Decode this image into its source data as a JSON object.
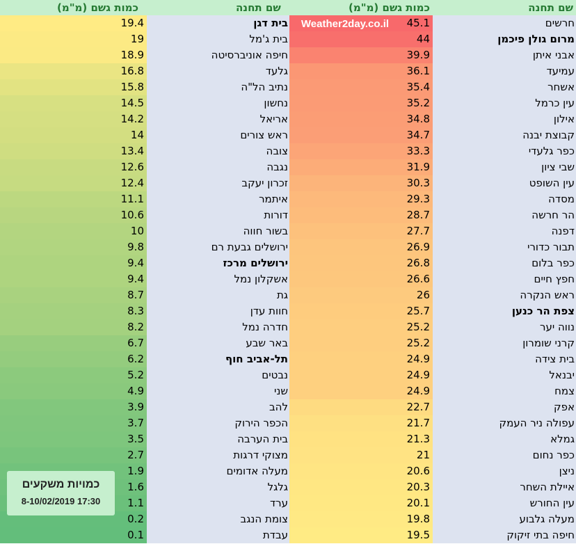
{
  "headers": {
    "station": "שם תחנה",
    "rain": "כמות גשם (מ\"מ)"
  },
  "watermark": "Weather2day.co.il",
  "info": {
    "title": "כמויות משקעים",
    "date": "8-10/02/2019 17:30"
  },
  "right_table": [
    {
      "name": "חרשים",
      "value": "45.1",
      "bold": false
    },
    {
      "name": "מרום גולן פיכמן",
      "value": "44",
      "bold": true
    },
    {
      "name": "אבני איתן",
      "value": "39.9",
      "bold": false
    },
    {
      "name": "עמיעד",
      "value": "36.1",
      "bold": false
    },
    {
      "name": "אשחר",
      "value": "35.4",
      "bold": false
    },
    {
      "name": "עין כרמל",
      "value": "35.2",
      "bold": false
    },
    {
      "name": "אילון",
      "value": "34.8",
      "bold": false
    },
    {
      "name": "קבוצת יבנה",
      "value": "34.7",
      "bold": false
    },
    {
      "name": "כפר גלעדי",
      "value": "33.3",
      "bold": false
    },
    {
      "name": "שבי ציון",
      "value": "31.9",
      "bold": false
    },
    {
      "name": "עין השופט",
      "value": "30.3",
      "bold": false
    },
    {
      "name": "מסדה",
      "value": "29.3",
      "bold": false
    },
    {
      "name": "הר חרשה",
      "value": "28.7",
      "bold": false
    },
    {
      "name": "דפנה",
      "value": "27.7",
      "bold": false
    },
    {
      "name": "תבור כדורי",
      "value": "26.9",
      "bold": false
    },
    {
      "name": "כפר בלום",
      "value": "26.8",
      "bold": false
    },
    {
      "name": "חפץ חיים",
      "value": "26.6",
      "bold": false
    },
    {
      "name": "ראש הנקרה",
      "value": "26",
      "bold": false
    },
    {
      "name": "צפת הר כנען",
      "value": "25.7",
      "bold": true
    },
    {
      "name": "נווה יער",
      "value": "25.2",
      "bold": false
    },
    {
      "name": "קרני שומרון",
      "value": "25.2",
      "bold": false
    },
    {
      "name": "בית צידה",
      "value": "24.9",
      "bold": false
    },
    {
      "name": "יבנאל",
      "value": "24.9",
      "bold": false
    },
    {
      "name": "צמח",
      "value": "24.9",
      "bold": false
    },
    {
      "name": "אפק",
      "value": "22.7",
      "bold": false
    },
    {
      "name": "עפולה ניר העמק",
      "value": "21.7",
      "bold": false
    },
    {
      "name": "גמלא",
      "value": "21.3",
      "bold": false
    },
    {
      "name": "כפר נחום",
      "value": "21",
      "bold": false
    },
    {
      "name": "ניצן",
      "value": "20.6",
      "bold": false
    },
    {
      "name": "איילת השחר",
      "value": "20.3",
      "bold": false
    },
    {
      "name": "עין החורש",
      "value": "20.1",
      "bold": false
    },
    {
      "name": "מעלה גלבוע",
      "value": "19.8",
      "bold": false
    },
    {
      "name": "חיפה בתי זיקוק",
      "value": "19.5",
      "bold": false
    }
  ],
  "left_table": [
    {
      "name": "בית דגן",
      "value": "19.4",
      "bold": true
    },
    {
      "name": "בית ג'מל",
      "value": "19",
      "bold": false
    },
    {
      "name": "חיפה אוניברסיטה",
      "value": "18.9",
      "bold": false
    },
    {
      "name": "גלעד",
      "value": "16.8",
      "bold": false
    },
    {
      "name": "נתיב הל\"ה",
      "value": "15.8",
      "bold": false
    },
    {
      "name": "נחשון",
      "value": "14.5",
      "bold": false
    },
    {
      "name": "אריאל",
      "value": "14.2",
      "bold": false
    },
    {
      "name": "ראש צורים",
      "value": "14",
      "bold": false
    },
    {
      "name": "צובה",
      "value": "13.4",
      "bold": false
    },
    {
      "name": "נגבה",
      "value": "12.6",
      "bold": false
    },
    {
      "name": "זכרון יעקב",
      "value": "12.4",
      "bold": false
    },
    {
      "name": "איתמר",
      "value": "11.1",
      "bold": false
    },
    {
      "name": "דורות",
      "value": "10.6",
      "bold": false
    },
    {
      "name": "בשור חווה",
      "value": "10",
      "bold": false
    },
    {
      "name": "ירושלים גבעת רם",
      "value": "9.8",
      "bold": false
    },
    {
      "name": "ירושלים מרכז",
      "value": "9.4",
      "bold": true
    },
    {
      "name": "אשקלון נמל",
      "value": "9.4",
      "bold": false
    },
    {
      "name": "גת",
      "value": "8.7",
      "bold": false
    },
    {
      "name": "חוות עדן",
      "value": "8.3",
      "bold": false
    },
    {
      "name": "חדרה נמל",
      "value": "8.2",
      "bold": false
    },
    {
      "name": "באר שבע",
      "value": "6.7",
      "bold": false
    },
    {
      "name": "תל-אביב חוף",
      "value": "6.2",
      "bold": true
    },
    {
      "name": "נבטים",
      "value": "5.2",
      "bold": false
    },
    {
      "name": "שני",
      "value": "4.9",
      "bold": false
    },
    {
      "name": "להב",
      "value": "3.9",
      "bold": false
    },
    {
      "name": "הכפר הירוק",
      "value": "3.7",
      "bold": false
    },
    {
      "name": "בית הערבה",
      "value": "3.5",
      "bold": false
    },
    {
      "name": "מצוקי דרגות",
      "value": "2.7",
      "bold": false
    },
    {
      "name": "מעלה אדומים",
      "value": "1.9",
      "bold": false
    },
    {
      "name": "גלגל",
      "value": "1.6",
      "bold": false
    },
    {
      "name": "ערד",
      "value": "1.1",
      "bold": false
    },
    {
      "name": "צומת הנגב",
      "value": "0.2",
      "bold": false
    },
    {
      "name": "עבדת",
      "value": "0.1",
      "bold": false
    }
  ]
}
